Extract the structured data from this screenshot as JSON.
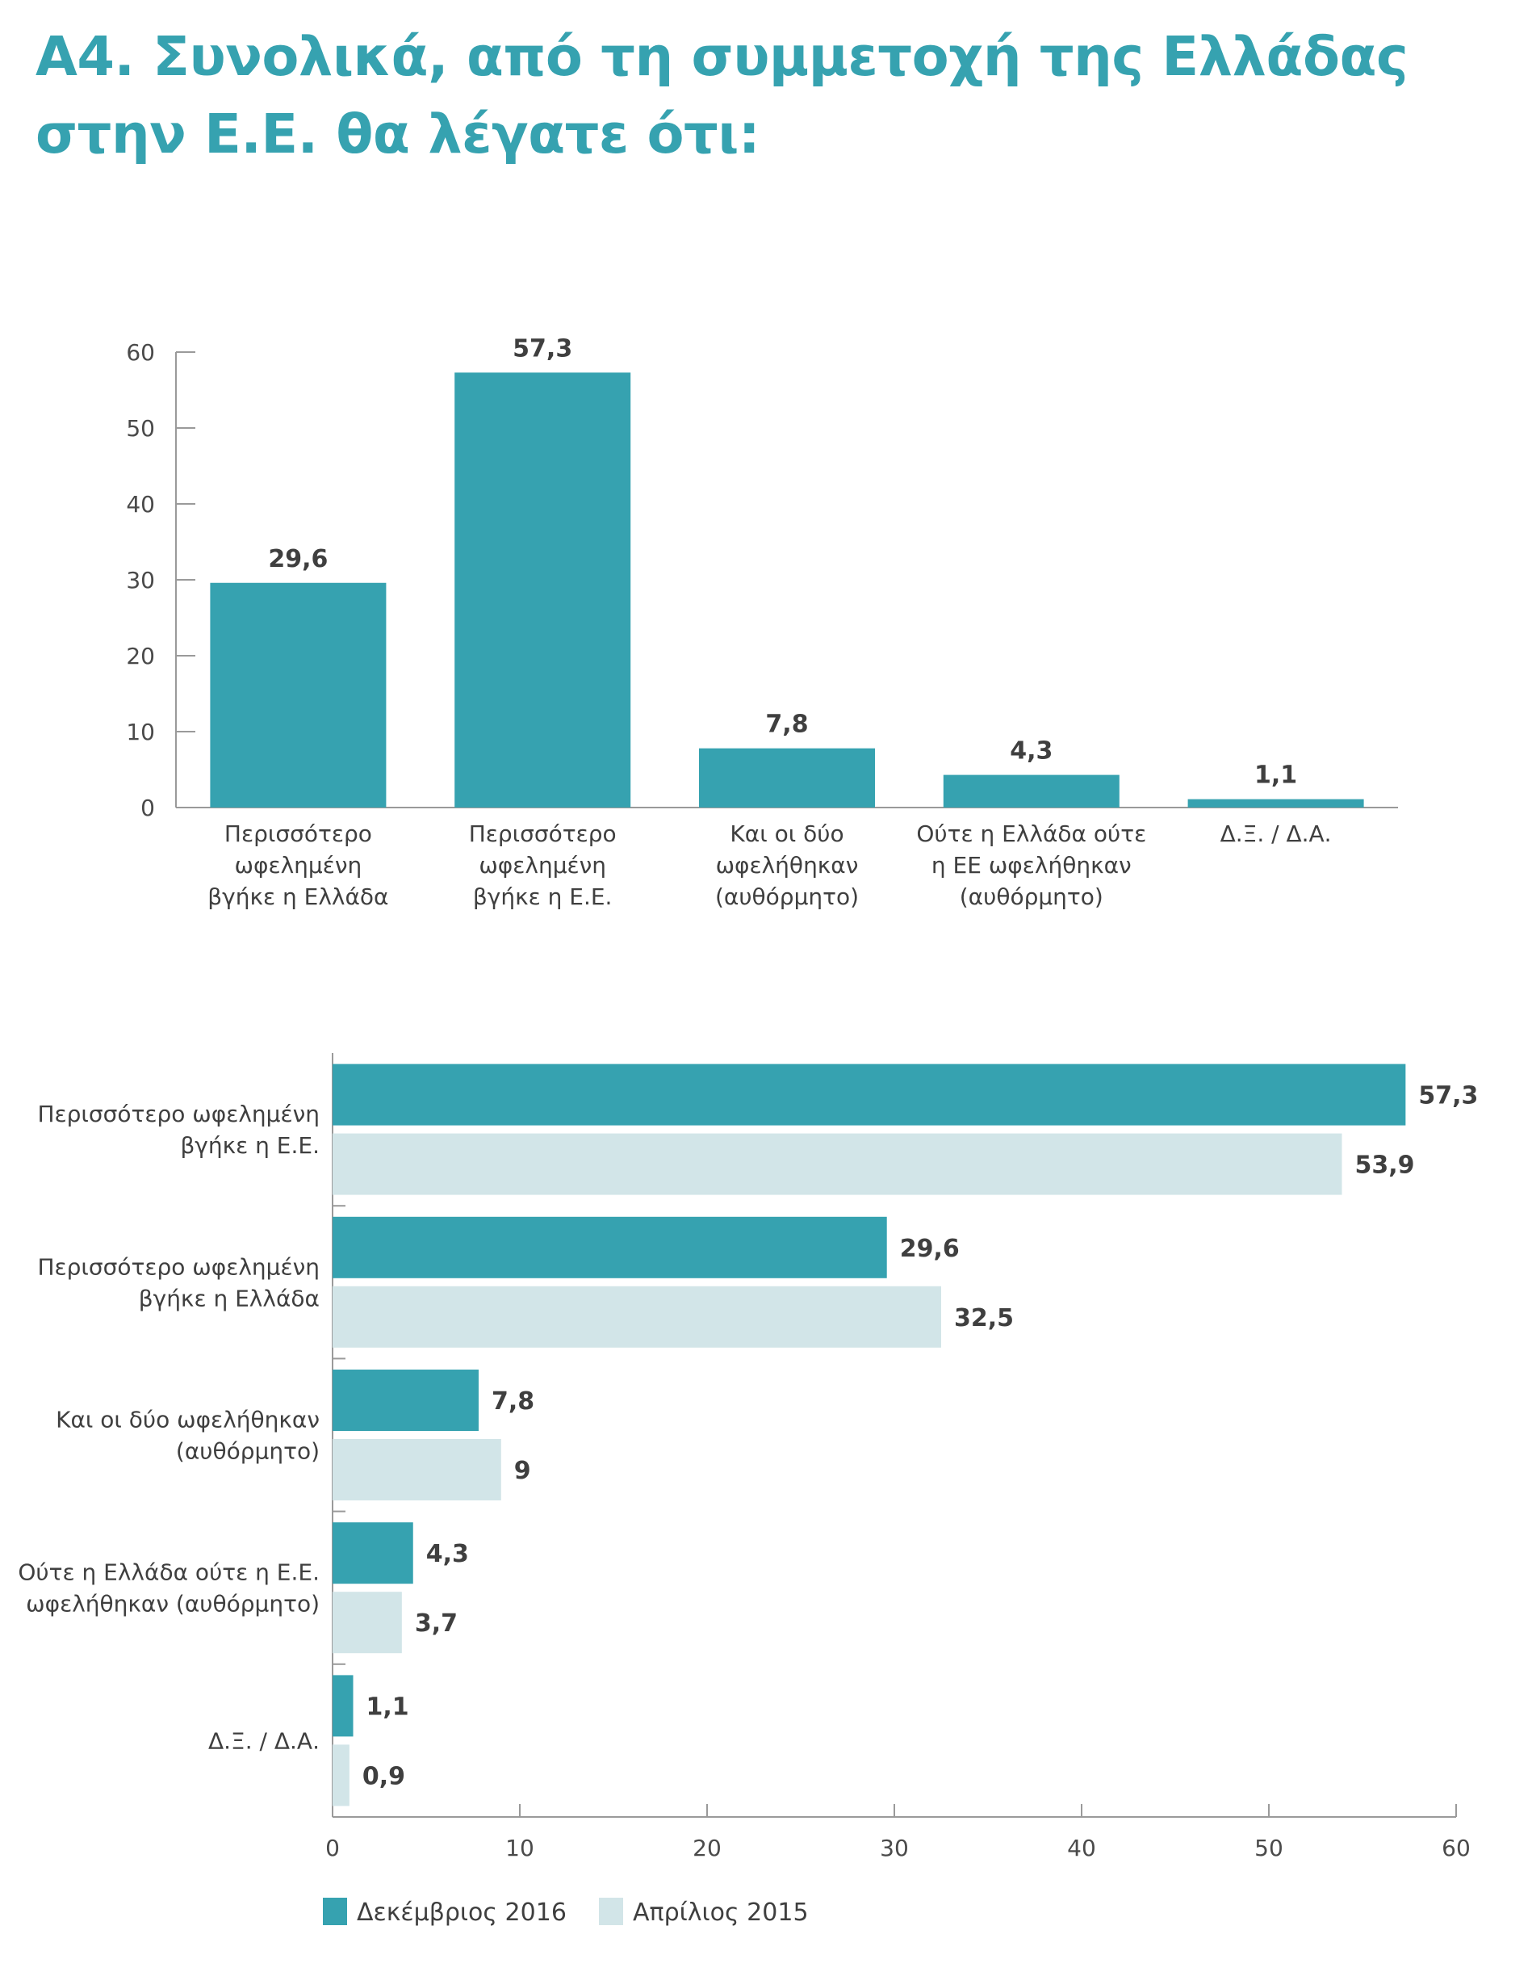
{
  "title": {
    "line1": "Α4. Συνολικά, από τη συμμετοχή της Ελλάδας",
    "line2": "στην Ε.Ε. θα λέγατε ότι:"
  },
  "colors": {
    "title": "#36a2b0",
    "series_dec_2016": "#36a2b0",
    "series_apr_2015": "#d2e5e8"
  },
  "chart_data": [
    {
      "type": "bar",
      "orientation": "vertical",
      "categories": [
        [
          "Περισσότερο",
          "ωφελημένη",
          "βγήκε η Ελλάδα"
        ],
        [
          "Περισσότερο",
          "ωφελημένη",
          "βγήκε η Ε.Ε."
        ],
        [
          "Και οι δύο",
          "ωφελήθηκαν",
          "(αυθόρμητο)"
        ],
        [
          "Ούτε η Ελλάδα ούτε",
          "η ΕΕ ωφελήθηκαν",
          "(αυθόρμητο)"
        ],
        [
          "Δ.Ξ. / Δ.Α."
        ]
      ],
      "values": [
        29.6,
        57.3,
        7.8,
        4.3,
        1.1
      ],
      "value_labels": [
        "29,6",
        "57,3",
        "7,8",
        "4,3",
        "1,1"
      ],
      "ylim": [
        0,
        60
      ],
      "yticks": [
        0,
        10,
        20,
        30,
        40,
        50,
        60
      ],
      "grid": false,
      "color": "#36a2b0"
    },
    {
      "type": "bar",
      "orientation": "horizontal",
      "categories": [
        [
          "Περισσότερο ωφελημένη",
          "βγήκε η Ε.Ε."
        ],
        [
          "Περισσότερο ωφελημένη",
          "βγήκε η Ελλάδα"
        ],
        [
          "Και οι δύο ωφελήθηκαν",
          "(αυθόρμητο)"
        ],
        [
          "Ούτε η Ελλάδα ούτε η Ε.Ε.",
          "ωφελήθηκαν (αυθόρμητο)"
        ],
        [
          "Δ.Ξ. / Δ.Α."
        ]
      ],
      "series": [
        {
          "name": "Δεκέμβριος 2016",
          "values": [
            57.3,
            29.6,
            7.8,
            4.3,
            1.1
          ],
          "value_labels": [
            "57,3",
            "29,6",
            "7,8",
            "4,3",
            "1,1"
          ],
          "color": "#36a2b0"
        },
        {
          "name": "Απρίλιος 2015",
          "values": [
            53.9,
            32.5,
            9,
            3.7,
            0.9
          ],
          "value_labels": [
            "53,9",
            "32,5",
            "9",
            "3,7",
            "0,9"
          ],
          "color": "#d2e5e8"
        }
      ],
      "xlim": [
        0,
        60
      ],
      "xticks": [
        0,
        10,
        20,
        30,
        40,
        50,
        60
      ],
      "grid": false,
      "legend_position": "bottom-left"
    }
  ]
}
